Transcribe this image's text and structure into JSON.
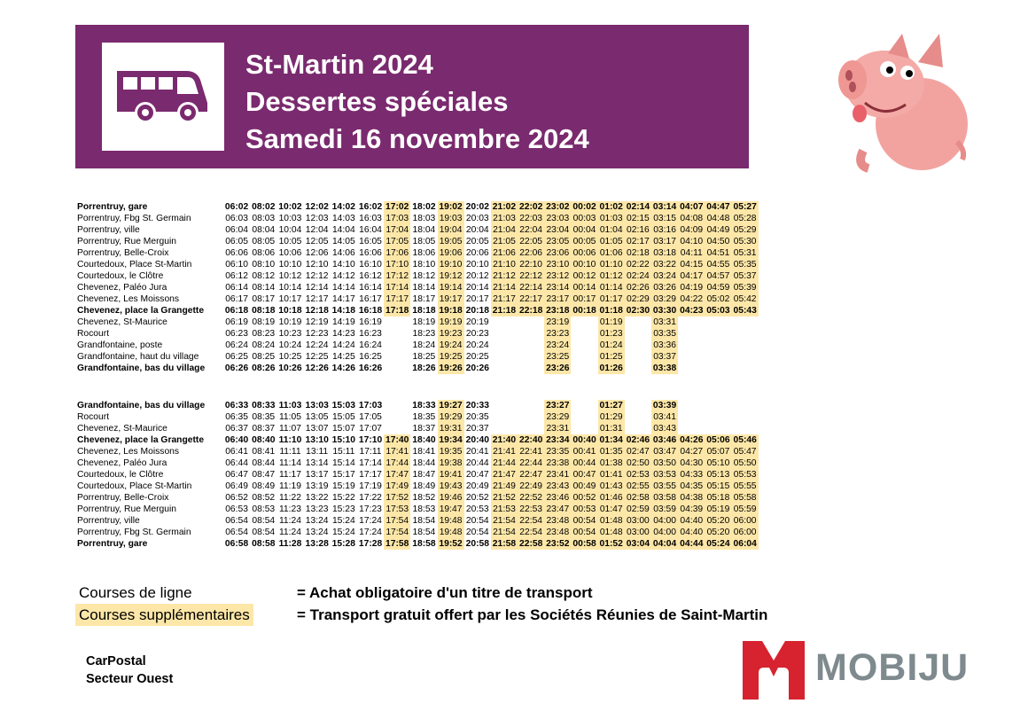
{
  "header": {
    "title_line1": "St-Martin 2024",
    "title_line2": "Dessertes spéciales",
    "title_line3": "Samedi 16 novembre 2024"
  },
  "colors": {
    "banner": "#7a2a6e",
    "highlight": "#fde7a8",
    "mobiju_red": "#d6232f",
    "mobiju_grey": "#7e8a8e"
  },
  "icons": [
    "bus-icon",
    "pig-mascot-icon",
    "mobiju-m-logo"
  ],
  "outbound": {
    "bold_rows": [
      0,
      9,
      14
    ],
    "highlight_columns": [
      6,
      8,
      10,
      11,
      12,
      13,
      14,
      15,
      16,
      17,
      18,
      19,
      20
    ],
    "rows": [
      {
        "stop": "Porrentruy, gare",
        "times": [
          "06:02",
          "08:02",
          "10:02",
          "12:02",
          "14:02",
          "16:02",
          "17:02",
          "18:02",
          "19:02",
          "20:02",
          "21:02",
          "22:02",
          "23:02",
          "00:02",
          "01:02",
          "02:14",
          "03:14",
          "04:07",
          "04:47",
          "05:27"
        ]
      },
      {
        "stop": "Porrentruy, Fbg St. Germain",
        "times": [
          "06:03",
          "08:03",
          "10:03",
          "12:03",
          "14:03",
          "16:03",
          "17:03",
          "18:03",
          "19:03",
          "20:03",
          "21:03",
          "22:03",
          "23:03",
          "00:03",
          "01:03",
          "02:15",
          "03:15",
          "04:08",
          "04:48",
          "05:28"
        ]
      },
      {
        "stop": "Porrentruy, ville",
        "times": [
          "06:04",
          "08:04",
          "10:04",
          "12:04",
          "14:04",
          "16:04",
          "17:04",
          "18:04",
          "19:04",
          "20:04",
          "21:04",
          "22:04",
          "23:04",
          "00:04",
          "01:04",
          "02:16",
          "03:16",
          "04:09",
          "04:49",
          "05:29"
        ]
      },
      {
        "stop": "Porrentruy, Rue Merguin",
        "times": [
          "06:05",
          "08:05",
          "10:05",
          "12:05",
          "14:05",
          "16:05",
          "17:05",
          "18:05",
          "19:05",
          "20:05",
          "21:05",
          "22:05",
          "23:05",
          "00:05",
          "01:05",
          "02:17",
          "03:17",
          "04:10",
          "04:50",
          "05:30"
        ]
      },
      {
        "stop": "Porrentruy, Belle-Croix",
        "times": [
          "06:06",
          "08:06",
          "10:06",
          "12:06",
          "14:06",
          "16:06",
          "17:06",
          "18:06",
          "19:06",
          "20:06",
          "21:06",
          "22:06",
          "23:06",
          "00:06",
          "01:06",
          "02:18",
          "03:18",
          "04:11",
          "04:51",
          "05:31"
        ]
      },
      {
        "stop": "Courtedoux, Place St-Martin",
        "times": [
          "06:10",
          "08:10",
          "10:10",
          "12:10",
          "14:10",
          "16:10",
          "17:10",
          "18:10",
          "19:10",
          "20:10",
          "21:10",
          "22:10",
          "23:10",
          "00:10",
          "01:10",
          "02:22",
          "03:22",
          "04:15",
          "04:55",
          "05:35"
        ]
      },
      {
        "stop": "Courtedoux, le Clôtre",
        "times": [
          "06:12",
          "08:12",
          "10:12",
          "12:12",
          "14:12",
          "16:12",
          "17:12",
          "18:12",
          "19:12",
          "20:12",
          "21:12",
          "22:12",
          "23:12",
          "00:12",
          "01:12",
          "02:24",
          "03:24",
          "04:17",
          "04:57",
          "05:37"
        ]
      },
      {
        "stop": "Chevenez, Paléo Jura",
        "times": [
          "06:14",
          "08:14",
          "10:14",
          "12:14",
          "14:14",
          "16:14",
          "17:14",
          "18:14",
          "19:14",
          "20:14",
          "21:14",
          "22:14",
          "23:14",
          "00:14",
          "01:14",
          "02:26",
          "03:26",
          "04:19",
          "04:59",
          "05:39"
        ]
      },
      {
        "stop": "Chevenez, Les Moissons",
        "times": [
          "06:17",
          "08:17",
          "10:17",
          "12:17",
          "14:17",
          "16:17",
          "17:17",
          "18:17",
          "19:17",
          "20:17",
          "21:17",
          "22:17",
          "23:17",
          "00:17",
          "01:17",
          "02:29",
          "03:29",
          "04:22",
          "05:02",
          "05:42"
        ]
      },
      {
        "stop": "Chevenez, place la Grangette",
        "times": [
          "06:18",
          "08:18",
          "10:18",
          "12:18",
          "14:18",
          "16:18",
          "17:18",
          "18:18",
          "19:18",
          "20:18",
          "21:18",
          "22:18",
          "23:18",
          "00:18",
          "01:18",
          "02:30",
          "03:30",
          "04:23",
          "05:03",
          "05:43"
        ]
      },
      {
        "stop": "Chevenez, St-Maurice",
        "times": [
          "06:19",
          "08:19",
          "10:19",
          "12:19",
          "14:19",
          "16:19",
          "",
          "18:19",
          "19:19",
          "20:19",
          "",
          "",
          "23:19",
          "",
          "01:19",
          "",
          "03:31",
          "",
          "",
          ""
        ]
      },
      {
        "stop": "Rocourt",
        "times": [
          "06:23",
          "08:23",
          "10:23",
          "12:23",
          "14:23",
          "16:23",
          "",
          "18:23",
          "19:23",
          "20:23",
          "",
          "",
          "23:23",
          "",
          "01:23",
          "",
          "03:35",
          "",
          "",
          ""
        ]
      },
      {
        "stop": "Grandfontaine, poste",
        "times": [
          "06:24",
          "08:24",
          "10:24",
          "12:24",
          "14:24",
          "16:24",
          "",
          "18:24",
          "19:24",
          "20:24",
          "",
          "",
          "23:24",
          "",
          "01:24",
          "",
          "03:36",
          "",
          "",
          ""
        ]
      },
      {
        "stop": "Grandfontaine, haut du village",
        "times": [
          "06:25",
          "08:25",
          "10:25",
          "12:25",
          "14:25",
          "16:25",
          "",
          "18:25",
          "19:25",
          "20:25",
          "",
          "",
          "23:25",
          "",
          "01:25",
          "",
          "03:37",
          "",
          "",
          ""
        ]
      },
      {
        "stop": "Grandfontaine, bas du village",
        "times": [
          "06:26",
          "08:26",
          "10:26",
          "12:26",
          "14:26",
          "16:26",
          "",
          "18:26",
          "19:26",
          "20:26",
          "",
          "",
          "23:26",
          "",
          "01:26",
          "",
          "03:38",
          "",
          "",
          ""
        ]
      }
    ]
  },
  "return": {
    "bold_rows": [
      0,
      3,
      12
    ],
    "highlight_columns": [
      6,
      8,
      10,
      11,
      12,
      13,
      14,
      15,
      16,
      17,
      18,
      19,
      20
    ],
    "rows": [
      {
        "stop": "Grandfontaine, bas du village",
        "times": [
          "06:33",
          "08:33",
          "11:03",
          "13:03",
          "15:03",
          "17:03",
          "",
          "18:33",
          "19:27",
          "20:33",
          "",
          "",
          "23:27",
          "",
          "01:27",
          "",
          "03:39",
          "",
          "",
          ""
        ]
      },
      {
        "stop": "Rocourt",
        "times": [
          "06:35",
          "08:35",
          "11:05",
          "13:05",
          "15:05",
          "17:05",
          "",
          "18:35",
          "19:29",
          "20:35",
          "",
          "",
          "23:29",
          "",
          "01:29",
          "",
          "03:41",
          "",
          "",
          ""
        ]
      },
      {
        "stop": "Chevenez, St-Maurice",
        "times": [
          "06:37",
          "08:37",
          "11:07",
          "13:07",
          "15:07",
          "17:07",
          "",
          "18:37",
          "19:31",
          "20:37",
          "",
          "",
          "23:31",
          "",
          "01:31",
          "",
          "03:43",
          "",
          "",
          ""
        ]
      },
      {
        "stop": "Chevenez, place la Grangette",
        "times": [
          "06:40",
          "08:40",
          "11:10",
          "13:10",
          "15:10",
          "17:10",
          "17:40",
          "18:40",
          "19:34",
          "20:40",
          "21:40",
          "22:40",
          "23:34",
          "00:40",
          "01:34",
          "02:46",
          "03:46",
          "04:26",
          "05:06",
          "05:46"
        ]
      },
      {
        "stop": "Chevenez, Les Moissons",
        "times": [
          "06:41",
          "08:41",
          "11:11",
          "13:11",
          "15:11",
          "17:11",
          "17:41",
          "18:41",
          "19:35",
          "20:41",
          "21:41",
          "22:41",
          "23:35",
          "00:41",
          "01:35",
          "02:47",
          "03:47",
          "04:27",
          "05:07",
          "05:47"
        ]
      },
      {
        "stop": "Chevenez, Paléo Jura",
        "times": [
          "06:44",
          "08:44",
          "11:14",
          "13:14",
          "15:14",
          "17:14",
          "17:44",
          "18:44",
          "19:38",
          "20:44",
          "21:44",
          "22:44",
          "23:38",
          "00:44",
          "01:38",
          "02:50",
          "03:50",
          "04:30",
          "05:10",
          "05:50"
        ]
      },
      {
        "stop": "Courtedoux, le Clôtre",
        "times": [
          "06:47",
          "08:47",
          "11:17",
          "13:17",
          "15:17",
          "17:17",
          "17:47",
          "18:47",
          "19:41",
          "20:47",
          "21:47",
          "22:47",
          "23:41",
          "00:47",
          "01:41",
          "02:53",
          "03:53",
          "04:33",
          "05:13",
          "05:53"
        ]
      },
      {
        "stop": "Courtedoux, Place St-Martin",
        "times": [
          "06:49",
          "08:49",
          "11:19",
          "13:19",
          "15:19",
          "17:19",
          "17:49",
          "18:49",
          "19:43",
          "20:49",
          "21:49",
          "22:49",
          "23:43",
          "00:49",
          "01:43",
          "02:55",
          "03:55",
          "04:35",
          "05:15",
          "05:55"
        ]
      },
      {
        "stop": "Porrentruy, Belle-Croix",
        "times": [
          "06:52",
          "08:52",
          "11:22",
          "13:22",
          "15:22",
          "17:22",
          "17:52",
          "18:52",
          "19:46",
          "20:52",
          "21:52",
          "22:52",
          "23:46",
          "00:52",
          "01:46",
          "02:58",
          "03:58",
          "04:38",
          "05:18",
          "05:58"
        ]
      },
      {
        "stop": "Porrentruy, Rue Merguin",
        "times": [
          "06:53",
          "08:53",
          "11:23",
          "13:23",
          "15:23",
          "17:23",
          "17:53",
          "18:53",
          "19:47",
          "20:53",
          "21:53",
          "22:53",
          "23:47",
          "00:53",
          "01:47",
          "02:59",
          "03:59",
          "04:39",
          "05:19",
          "05:59"
        ]
      },
      {
        "stop": "Porrentruy, ville",
        "times": [
          "06:54",
          "08:54",
          "11:24",
          "13:24",
          "15:24",
          "17:24",
          "17:54",
          "18:54",
          "19:48",
          "20:54",
          "21:54",
          "22:54",
          "23:48",
          "00:54",
          "01:48",
          "03:00",
          "04:00",
          "04:40",
          "05:20",
          "06:00"
        ]
      },
      {
        "stop": "Porrentruy, Fbg St. Germain",
        "times": [
          "06:54",
          "08:54",
          "11:24",
          "13:24",
          "15:24",
          "17:24",
          "17:54",
          "18:54",
          "19:48",
          "20:54",
          "21:54",
          "22:54",
          "23:48",
          "00:54",
          "01:48",
          "03:00",
          "04:00",
          "04:40",
          "05:20",
          "06:00"
        ]
      },
      {
        "stop": "Porrentruy, gare",
        "times": [
          "06:58",
          "08:58",
          "11:28",
          "13:28",
          "15:28",
          "17:28",
          "17:58",
          "18:58",
          "19:52",
          "20:58",
          "21:58",
          "22:58",
          "23:52",
          "00:58",
          "01:52",
          "03:04",
          "04:04",
          "04:44",
          "05:24",
          "06:04"
        ]
      }
    ]
  },
  "legend": {
    "regular_label": "Courses de ligne",
    "regular_desc": "= Achat obligatoire d'un titre de transport",
    "extra_label": "Courses supplémentaires",
    "extra_desc": "= Transport gratuit offert par les Sociétés Réunies de Saint-Martin"
  },
  "footer": {
    "operator_line1": "CarPostal",
    "operator_line2": "Secteur Ouest",
    "brand": "MOBIJU"
  }
}
